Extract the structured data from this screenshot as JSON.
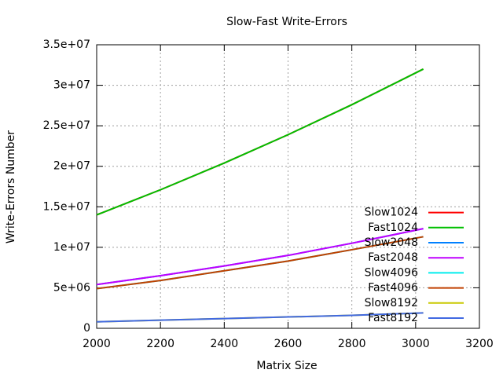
{
  "chart_data": {
    "type": "line",
    "title": "Slow-Fast Write-Errors",
    "x_label": "Matrix Size",
    "y_label": "Write-Errors Number",
    "x": [
      2000,
      2200,
      2400,
      2600,
      2800,
      3024
    ],
    "series": [
      {
        "name": "Slow1024",
        "color": "#ff0000",
        "values": [
          14000000,
          17100000,
          20400000,
          23900000,
          27600000,
          32000000
        ]
      },
      {
        "name": "Fast1024",
        "color": "#00c000",
        "values": [
          14000000,
          17100000,
          20400000,
          23900000,
          27600000,
          32000000
        ]
      },
      {
        "name": "Slow2048",
        "color": "#0080ff",
        "values": [
          5400000,
          6500000,
          7700000,
          9000000,
          10500000,
          12300000
        ]
      },
      {
        "name": "Fast2048",
        "color": "#c000ff",
        "values": [
          5400000,
          6500000,
          7700000,
          9000000,
          10500000,
          12300000
        ]
      },
      {
        "name": "Slow4096",
        "color": "#00eeee",
        "values": [
          4900000,
          5900000,
          7100000,
          8300000,
          9700000,
          11300000
        ]
      },
      {
        "name": "Fast4096",
        "color": "#c04000",
        "values": [
          4900000,
          5900000,
          7100000,
          8300000,
          9700000,
          11300000
        ]
      },
      {
        "name": "Slow8192",
        "color": "#c8c800",
        "values": [
          800000,
          1000000,
          1200000,
          1400000,
          1600000,
          1900000
        ]
      },
      {
        "name": "Fast8192",
        "color": "#4169e1",
        "values": [
          800000,
          1000000,
          1200000,
          1400000,
          1600000,
          1900000
        ]
      }
    ],
    "xlim": [
      2000,
      3200
    ],
    "xticks": [
      2000,
      2200,
      2400,
      2600,
      2800,
      3000,
      3200
    ],
    "ylim": [
      0,
      35000000
    ],
    "yticks": [
      0,
      {
        "value": 5000000,
        "label": "5e+06"
      },
      {
        "value": 10000000,
        "label": "1e+07"
      },
      {
        "value": 15000000,
        "label": "1.5e+07"
      },
      {
        "value": 20000000,
        "label": "2e+07"
      },
      {
        "value": 25000000,
        "label": "2.5e+07"
      },
      {
        "value": 30000000,
        "label": "3e+07"
      },
      {
        "value": 35000000,
        "label": "3.5e+07"
      }
    ],
    "grid": true,
    "legend": "lower right"
  }
}
